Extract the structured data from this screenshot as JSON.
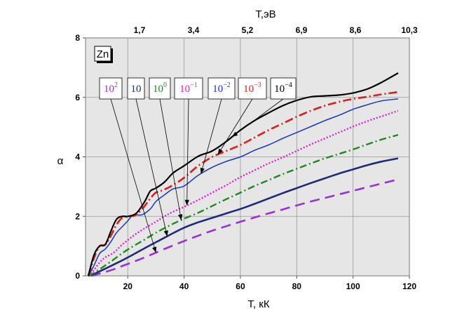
{
  "chart_data": {
    "type": "line",
    "element": "Zn",
    "xlabel": "T, кК",
    "x2label": "T,эВ",
    "ylabel": "α",
    "xlim": [
      5,
      120
    ],
    "ylim": [
      0,
      8
    ],
    "xticks": [
      "20",
      "40",
      "60",
      "80",
      "100",
      "120"
    ],
    "yticks": [
      "0",
      "2",
      "4",
      "6",
      "8"
    ],
    "x2ticks": [
      "1,7",
      "3,4",
      "5,2",
      "6,9",
      "8,6",
      "10,3"
    ],
    "grid": true,
    "series": [
      {
        "name": "10^2",
        "label_base": "10",
        "label_exp": "2",
        "color": "#9b30d9",
        "dash": "14,8",
        "width": 2.6,
        "x": [
          7,
          9,
          12,
          15,
          18,
          22,
          26,
          30,
          35,
          40,
          45,
          50,
          55,
          60,
          65,
          70,
          75,
          80,
          85,
          90,
          95,
          100,
          105,
          110,
          115
        ],
        "y": [
          0.0,
          0.05,
          0.13,
          0.22,
          0.33,
          0.47,
          0.62,
          0.78,
          0.98,
          1.17,
          1.35,
          1.52,
          1.67,
          1.82,
          1.96,
          2.1,
          2.23,
          2.37,
          2.5,
          2.62,
          2.74,
          2.86,
          2.98,
          3.1,
          3.22
        ]
      },
      {
        "name": "10",
        "label_base": "10",
        "label_exp": "",
        "color": "#1f2a7a",
        "dash": "",
        "width": 2.6,
        "x": [
          6,
          8,
          10,
          12,
          15,
          18,
          22,
          26,
          30,
          35,
          40,
          45,
          50,
          55,
          60,
          65,
          70,
          75,
          80,
          85,
          90,
          95,
          100,
          105,
          110,
          116
        ],
        "y": [
          0.0,
          0.06,
          0.15,
          0.24,
          0.38,
          0.52,
          0.72,
          0.93,
          1.13,
          1.38,
          1.62,
          1.8,
          1.95,
          2.1,
          2.25,
          2.42,
          2.6,
          2.78,
          2.95,
          3.12,
          3.28,
          3.44,
          3.58,
          3.72,
          3.84,
          3.95
        ]
      },
      {
        "name": "10^0",
        "label_base": "10",
        "label_exp": "0",
        "color": "#1e8a1e",
        "dash": "10,4,2,4",
        "width": 2.4,
        "x": [
          6,
          8,
          10,
          12,
          15,
          18,
          22,
          26,
          30,
          35,
          40,
          45,
          50,
          55,
          60,
          65,
          70,
          75,
          80,
          85,
          90,
          95,
          100,
          105,
          110,
          116
        ],
        "y": [
          0.0,
          0.1,
          0.22,
          0.35,
          0.55,
          0.76,
          1.0,
          1.22,
          1.45,
          1.7,
          1.92,
          2.12,
          2.35,
          2.58,
          2.8,
          3.02,
          3.22,
          3.42,
          3.6,
          3.78,
          3.95,
          4.1,
          4.25,
          4.42,
          4.58,
          4.74
        ]
      },
      {
        "name": "10^-1",
        "label_base": "10",
        "label_exp": "−1",
        "color": "#e01fd0",
        "dash": "2,2.5",
        "width": 2.4,
        "x": [
          6,
          8,
          10,
          12,
          15,
          18,
          20,
          22,
          26,
          30,
          33,
          36,
          40,
          45,
          50,
          55,
          60,
          65,
          70,
          75,
          80,
          85,
          90,
          95,
          100,
          105,
          110,
          116
        ],
        "y": [
          0.0,
          0.2,
          0.45,
          0.62,
          0.78,
          1.05,
          1.2,
          1.35,
          1.6,
          1.82,
          2.0,
          2.15,
          2.32,
          2.55,
          2.8,
          3.05,
          3.32,
          3.55,
          3.78,
          3.98,
          4.2,
          4.42,
          4.62,
          4.82,
          5.02,
          5.2,
          5.36,
          5.55
        ]
      },
      {
        "name": "10^-2",
        "label_base": "10",
        "label_exp": "−2",
        "color": "#1632c8",
        "dash": "",
        "width": 1.5,
        "x": [
          6,
          8,
          10,
          12,
          14,
          16,
          18,
          20,
          22,
          25,
          28,
          30,
          33,
          36,
          40,
          45,
          50,
          55,
          60,
          65,
          70,
          75,
          80,
          85,
          90,
          95,
          100,
          105,
          110,
          116
        ],
        "y": [
          0.0,
          0.35,
          0.75,
          0.9,
          1.15,
          1.45,
          1.65,
          1.85,
          2.05,
          2.05,
          2.25,
          2.5,
          2.72,
          2.92,
          3.02,
          3.38,
          3.65,
          3.85,
          4.0,
          4.22,
          4.4,
          4.62,
          4.82,
          5.02,
          5.22,
          5.4,
          5.6,
          5.75,
          5.88,
          5.95
        ]
      },
      {
        "name": "10^-3",
        "label_base": "10",
        "label_exp": "−3",
        "color": "#dc1e1e",
        "dash": "12,4,2,4",
        "width": 2.6,
        "x": [
          6,
          8,
          10,
          12,
          14,
          16,
          18,
          20,
          23,
          26,
          28,
          30,
          33,
          36,
          40,
          45,
          50,
          55,
          60,
          65,
          70,
          75,
          80,
          85,
          90,
          95,
          100,
          105,
          110,
          116
        ],
        "y": [
          0.0,
          0.6,
          1.0,
          1.05,
          1.35,
          1.72,
          1.95,
          2.0,
          2.05,
          2.35,
          2.6,
          2.8,
          2.9,
          3.05,
          3.3,
          3.7,
          4.0,
          4.2,
          4.4,
          4.65,
          4.9,
          5.12,
          5.35,
          5.55,
          5.72,
          5.85,
          5.95,
          6.02,
          6.1,
          6.18
        ]
      },
      {
        "name": "10^-4",
        "label_base": "10",
        "label_exp": "−4",
        "color": "#000000",
        "dash": "",
        "width": 2.2,
        "x": [
          6,
          8,
          10,
          12,
          14,
          16,
          18,
          20,
          23,
          26,
          28,
          30,
          33,
          36,
          40,
          45,
          50,
          55,
          60,
          65,
          70,
          75,
          80,
          85,
          90,
          95,
          100,
          105,
          110,
          116
        ],
        "y": [
          0.0,
          0.7,
          1.0,
          1.05,
          1.5,
          1.9,
          2.0,
          2.0,
          2.1,
          2.5,
          2.85,
          2.95,
          3.15,
          3.45,
          3.7,
          4.02,
          4.2,
          4.52,
          4.9,
          5.22,
          5.48,
          5.72,
          5.9,
          6.02,
          6.05,
          6.08,
          6.15,
          6.28,
          6.5,
          6.82
        ]
      }
    ]
  }
}
